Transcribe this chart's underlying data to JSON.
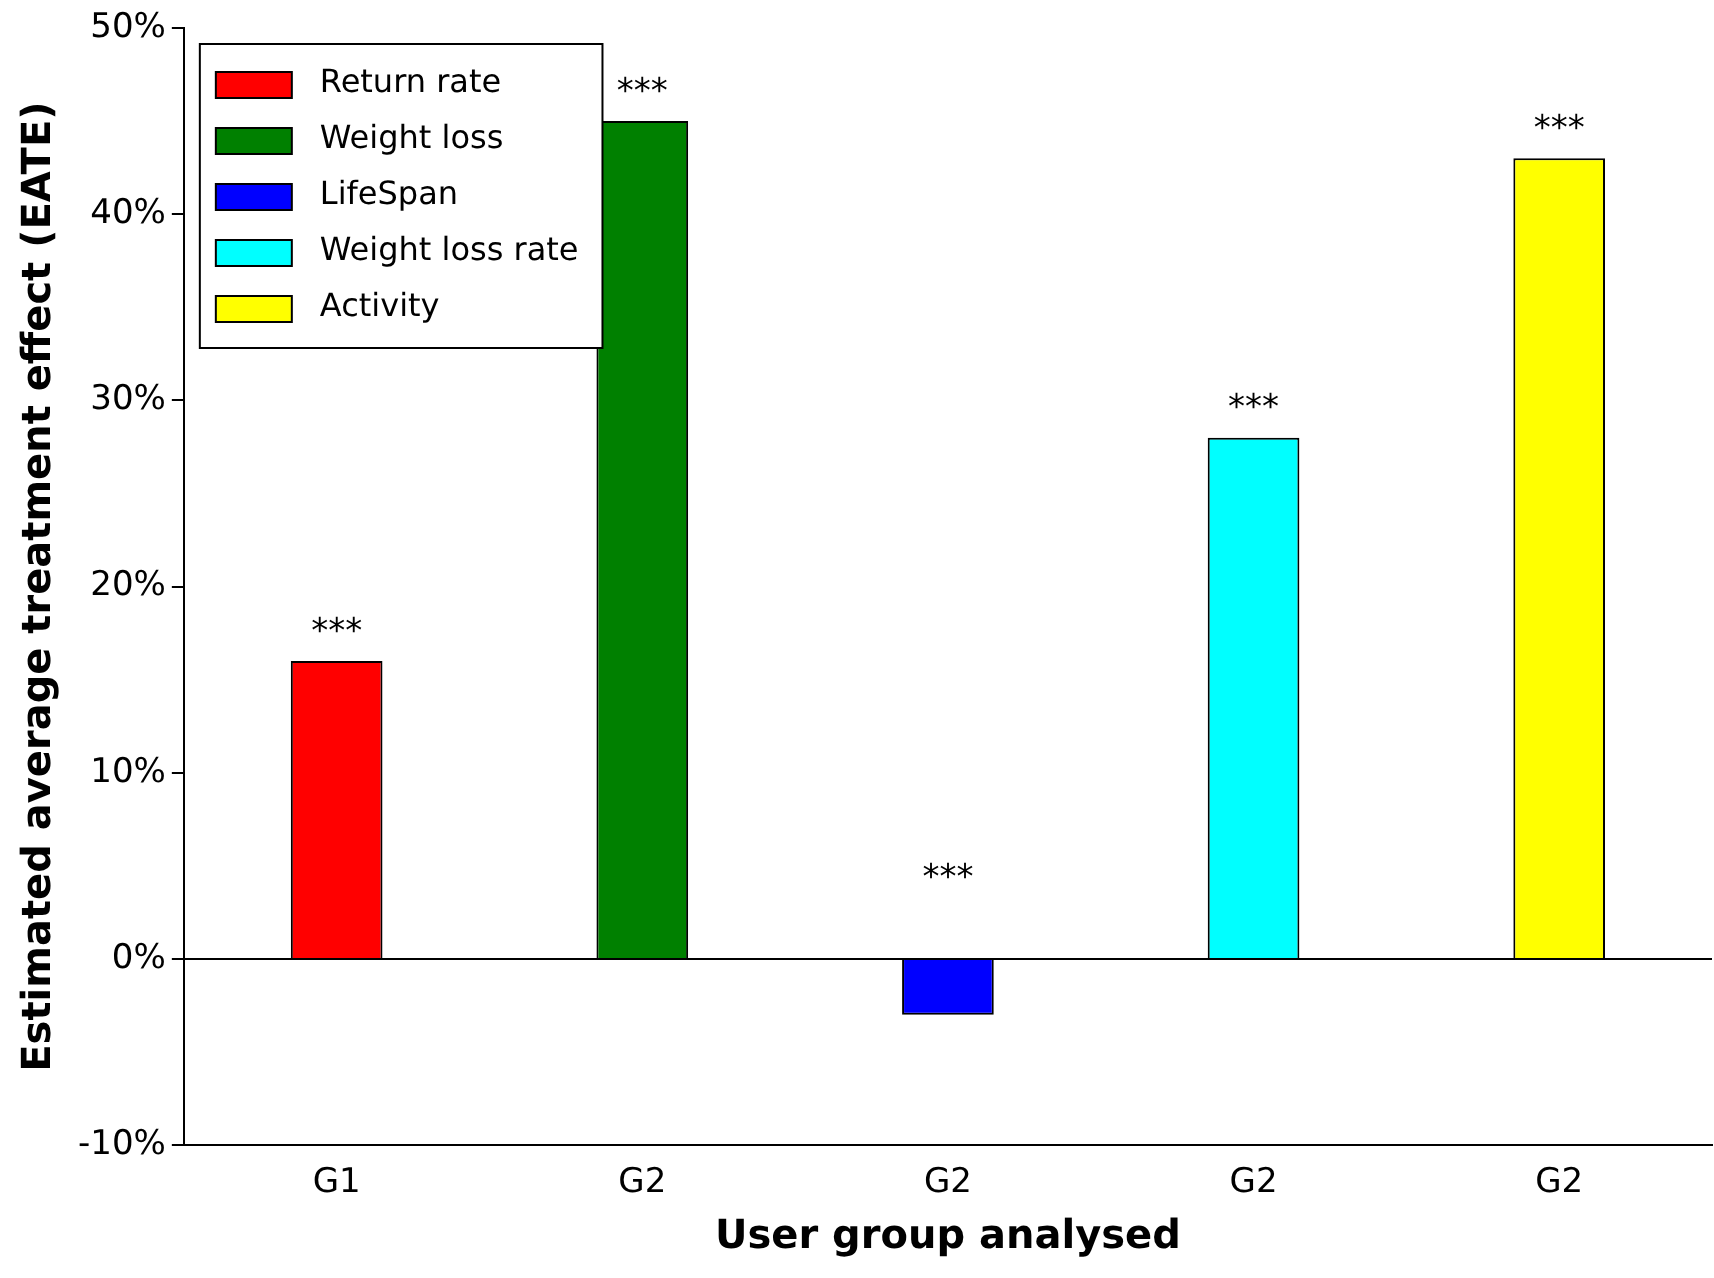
{
  "chart_data": {
    "type": "bar",
    "xlabel": "User group analysed",
    "ylabel": "Estimated average treatment effect (EATE)",
    "categories": [
      "G1",
      "G2",
      "G2",
      "G2",
      "G2"
    ],
    "series": [
      {
        "name": "Return rate",
        "color": "#ff0000",
        "values": [
          16,
          null,
          null,
          null,
          null
        ]
      },
      {
        "name": "Weight loss",
        "color": "#008000",
        "values": [
          null,
          45,
          null,
          null,
          null
        ]
      },
      {
        "name": "LifeSpan",
        "color": "#0000ff",
        "values": [
          null,
          null,
          -3,
          null,
          null
        ]
      },
      {
        "name": "Weight loss rate",
        "color": "#00ffff",
        "values": [
          null,
          null,
          null,
          28,
          null
        ]
      },
      {
        "name": "Activity",
        "color": "#ffff00",
        "values": [
          null,
          null,
          null,
          null,
          43
        ]
      }
    ],
    "ylim": [
      -10,
      50
    ],
    "yticks": [
      {
        "value": -10,
        "label": "-10%"
      },
      {
        "value": 0,
        "label": "0%"
      },
      {
        "value": 10,
        "label": "10%"
      },
      {
        "value": 20,
        "label": "20%"
      },
      {
        "value": 30,
        "label": "30%"
      },
      {
        "value": 40,
        "label": "40%"
      },
      {
        "value": 50,
        "label": "50%"
      }
    ],
    "ref_lines": [
      {
        "axis": "y",
        "value": 0,
        "color": "#000000"
      }
    ],
    "annotations": [
      "***",
      "***",
      "***",
      "***",
      "***"
    ],
    "grid": false,
    "legend": "top left"
  }
}
